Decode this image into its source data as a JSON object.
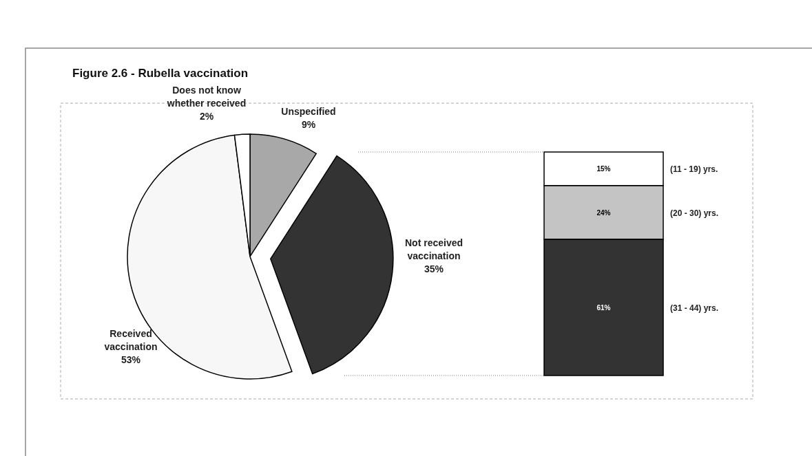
{
  "chart_data": [
    {
      "type": "pie",
      "title": "Figure 2.6 - Rubella vaccination",
      "categories": [
        "Unspecified",
        "Not received vaccination",
        "Received vaccination",
        "Does not know whether  received"
      ],
      "values": [
        9,
        35,
        53,
        2
      ],
      "colors": [
        "#a8a8a8",
        "#333333",
        "#f7f7f7",
        "#ffffff"
      ],
      "value_labels": [
        "9%",
        "35%",
        "53%",
        "2%"
      ]
    },
    {
      "type": "bar",
      "stacked": true,
      "categories": [
        null
      ],
      "series": [
        {
          "name": "(31 - 44) yrs.",
          "color": "#333333",
          "values": [
            61
          ],
          "value_labels": [
            "61%"
          ]
        },
        {
          "name": "(20 - 30) yrs.",
          "color": "#c4c4c4",
          "values": [
            24
          ],
          "value_labels": [
            "24%"
          ]
        },
        {
          "name": "(11 - 19) yrs.",
          "color": "#ffffff",
          "values": [
            15
          ],
          "value_labels": [
            "15%"
          ]
        }
      ]
    }
  ]
}
